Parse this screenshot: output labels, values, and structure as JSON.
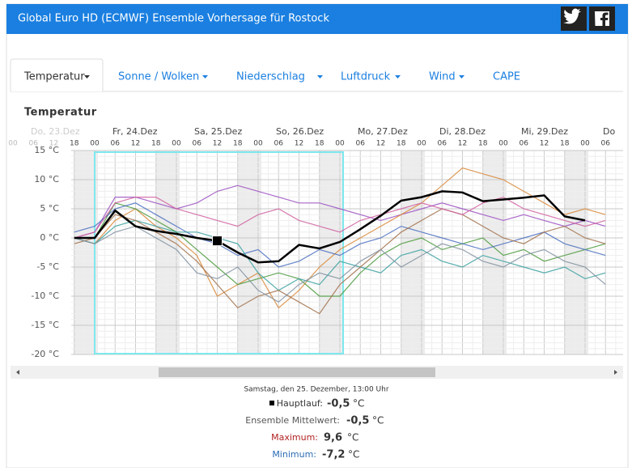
{
  "header": {
    "title": "Global Euro HD (ECMWF) Ensemble Vorhersage für Rostock"
  },
  "tabs": [
    "Temperatur",
    "Sonne / Wolken",
    "Niederschlag",
    "Luftdruck",
    "Wind",
    "CAPE"
  ],
  "section_title": "Temperatur",
  "chart_data": {
    "type": "line",
    "days": [
      "Do, 23.Dez",
      "Fr, 24.Dez",
      "Sa, 25.Dez",
      "So, 26.Dez",
      "Mo, 27.Dez",
      "Di, 28.Dez",
      "Mi, 29.Dez",
      "Do"
    ],
    "categories": [
      "00",
      "06",
      "12",
      "18",
      "00",
      "06",
      "12",
      "18",
      "00",
      "06",
      "12",
      "18",
      "00",
      "06",
      "12",
      "18",
      "00",
      "06",
      "12",
      "18",
      "00",
      "06",
      "12",
      "18",
      "00",
      "06",
      "12",
      "18",
      "00",
      "06"
    ],
    "ylim": [
      -20,
      15
    ],
    "yticks": [
      {
        "value": 15,
        "label": "15 °C"
      },
      {
        "value": 10,
        "label": "10 °C"
      },
      {
        "value": 5,
        "label": "5 °C"
      },
      {
        "value": 0,
        "label": "0 °C"
      },
      {
        "value": -5,
        "label": "-5 °C"
      },
      {
        "value": -10,
        "label": "-10 °C"
      },
      {
        "value": -15,
        "label": "-15 °C"
      },
      {
        "value": -20,
        "label": "-20 °C"
      }
    ],
    "grid": true,
    "series": [
      {
        "color": "#9b4fc2",
        "values": [
          null,
          null,
          null,
          0,
          1,
          7,
          7,
          6,
          5,
          6,
          8,
          9,
          8,
          7,
          6,
          6,
          5,
          4,
          3,
          4,
          5,
          6,
          5,
          4,
          3,
          4,
          3,
          2,
          3,
          2
        ]
      },
      {
        "color": "#d9883a",
        "values": [
          null,
          null,
          null,
          0,
          -1,
          3,
          5,
          2,
          0,
          -3,
          -10,
          -8,
          -6,
          -12,
          -9,
          -5,
          -2,
          0,
          2,
          4,
          6,
          9,
          12,
          11,
          10,
          8,
          6,
          4,
          5,
          4
        ]
      },
      {
        "color": "#4a9a3c",
        "values": [
          null,
          null,
          null,
          0,
          0,
          6,
          5,
          3,
          1,
          -2,
          -5,
          -8,
          -7,
          -6,
          -7,
          -10,
          -10,
          -6,
          -3,
          -1,
          0,
          -2,
          -1,
          0,
          -3,
          -2,
          -4,
          -3,
          -2,
          -1
        ]
      },
      {
        "color": "#4a6fbf",
        "values": [
          null,
          null,
          null,
          1,
          2,
          5,
          6,
          4,
          2,
          0,
          -1,
          -3,
          -2,
          -5,
          -4,
          -2,
          -3,
          -1,
          0,
          2,
          1,
          0,
          -1,
          -2,
          -1,
          0,
          1,
          -1,
          -2,
          -3
        ]
      },
      {
        "color": "#3aa0a0",
        "values": [
          null,
          null,
          null,
          0,
          -1,
          2,
          3,
          2,
          1,
          1,
          0,
          -1,
          -6,
          -9,
          -7,
          -8,
          -4,
          -5,
          -6,
          -3,
          -2,
          -4,
          -5,
          -3,
          -4,
          -5,
          -6,
          -5,
          -7,
          -6
        ]
      },
      {
        "color": "#a0704a",
        "values": [
          null,
          null,
          null,
          -1,
          0,
          4,
          3,
          1,
          -1,
          -4,
          -8,
          -12,
          -10,
          -9,
          -11,
          -13,
          -8,
          -5,
          -2,
          1,
          3,
          5,
          4,
          2,
          0,
          -1,
          1,
          2,
          0,
          -1
        ]
      },
      {
        "color": "#d060a0",
        "values": [
          null,
          null,
          null,
          0,
          1,
          6,
          7,
          7,
          5,
          4,
          3,
          2,
          4,
          5,
          3,
          2,
          1,
          3,
          4,
          5,
          6,
          5,
          4,
          6,
          7,
          5,
          4,
          3,
          2,
          3
        ]
      },
      {
        "color": "#8090a0",
        "values": [
          null,
          null,
          null,
          0,
          -1,
          1,
          2,
          0,
          -2,
          -6,
          -7,
          -5,
          -9,
          -11,
          -8,
          -6,
          -7,
          -4,
          -2,
          -5,
          -3,
          -1,
          -2,
          -4,
          -5,
          -3,
          -2,
          -4,
          -5,
          -8
        ]
      },
      {
        "color": "#000000",
        "values": [
          null,
          null,
          null,
          0,
          0,
          4.7,
          2,
          1.2,
          0.7,
          0,
          -0.5,
          -2.5,
          -4.2,
          -4,
          -1.2,
          -1.8,
          -0.7,
          1.5,
          3.8,
          6.4,
          7,
          8,
          7.8,
          6.3,
          6.6,
          6.9,
          7.3,
          3.7,
          3,
          null
        ]
      }
    ]
  },
  "readout": {
    "date": "Samstag, den 25. Dezember, 13:00 Uhr",
    "rows": [
      {
        "label": "Hauptlauf:",
        "value": "-0,5",
        "unit": "°C"
      },
      {
        "label": "Ensemble Mittelwert:",
        "value": "-0,5",
        "unit": "°C"
      },
      {
        "label": "Maximum:",
        "value": "9,6",
        "unit": "°C"
      },
      {
        "label": "Minimum:",
        "value": "-7,2",
        "unit": "°C"
      }
    ]
  }
}
